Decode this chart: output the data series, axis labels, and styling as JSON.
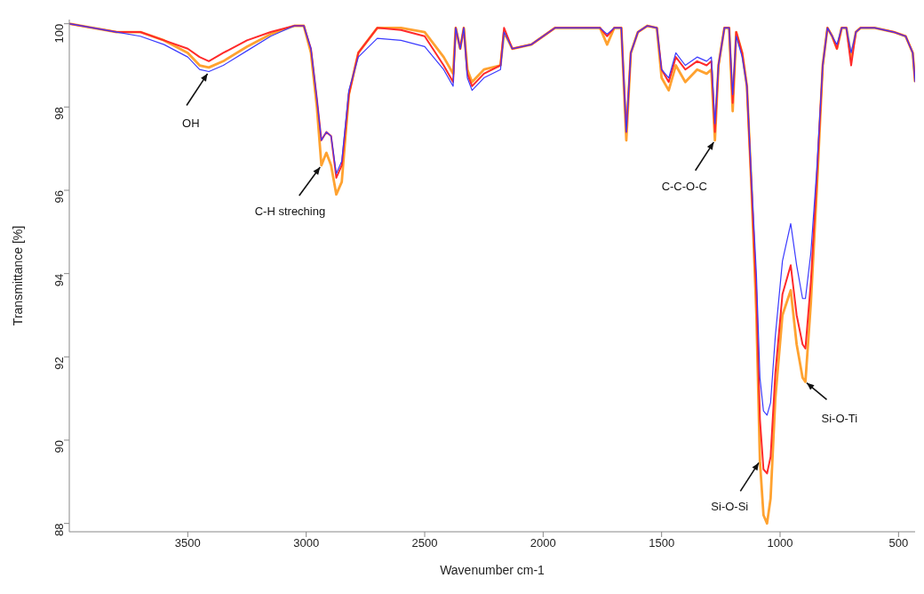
{
  "chart_data": {
    "type": "line",
    "xlabel": "Wavenumber cm-1",
    "ylabel": "Transmittance [%]",
    "xlim": [
      4000,
      430
    ],
    "ylim": [
      87.8,
      100.1
    ],
    "xticks": [
      3500,
      3000,
      2500,
      2000,
      1500,
      1000,
      500
    ],
    "yticks": [
      88,
      90,
      92,
      94,
      96,
      98,
      100
    ],
    "grid": false,
    "legend": false,
    "marker": "none",
    "line_style": "solid",
    "x": [
      4000,
      3900,
      3800,
      3700,
      3600,
      3500,
      3450,
      3411,
      3350,
      3250,
      3150,
      3050,
      3010,
      2980,
      2955,
      2936,
      2915,
      2895,
      2873,
      2850,
      2820,
      2780,
      2700,
      2600,
      2500,
      2420,
      2380,
      2369,
      2350,
      2335,
      2320,
      2300,
      2250,
      2180,
      2165,
      2130,
      2050,
      1950,
      1850,
      1760,
      1730,
      1700,
      1670,
      1649,
      1630,
      1600,
      1560,
      1520,
      1500,
      1470,
      1440,
      1400,
      1350,
      1310,
      1290,
      1275,
      1260,
      1235,
      1215,
      1200,
      1185,
      1160,
      1140,
      1120,
      1100,
      1085,
      1070,
      1055,
      1040,
      1020,
      990,
      955,
      930,
      905,
      893,
      870,
      845,
      820,
      800,
      780,
      760,
      740,
      720,
      700,
      680,
      660,
      600,
      520,
      470,
      440,
      430
    ],
    "series": [
      {
        "color": "#ffa230",
        "values": [
          100,
          99.9,
          99.8,
          99.8,
          99.6,
          99.3,
          99.0,
          98.95,
          99.1,
          99.45,
          99.75,
          99.95,
          99.95,
          99.3,
          98.0,
          96.6,
          96.9,
          96.6,
          95.9,
          96.2,
          98.3,
          99.3,
          99.9,
          99.9,
          99.8,
          99.2,
          98.8,
          99.9,
          99.4,
          99.9,
          98.9,
          98.6,
          98.9,
          99.0,
          99.8,
          99.4,
          99.5,
          99.9,
          99.9,
          99.9,
          99.5,
          99.9,
          99.9,
          97.2,
          99.3,
          99.8,
          99.95,
          99.9,
          98.7,
          98.4,
          99.0,
          98.6,
          98.9,
          98.8,
          98.9,
          97.2,
          99.0,
          99.9,
          99.9,
          97.9,
          99.8,
          99.3,
          98.5,
          96.0,
          93.0,
          89.5,
          88.2,
          88.0,
          88.6,
          91.0,
          93.0,
          93.6,
          92.3,
          91.5,
          91.4,
          93.3,
          96.0,
          99.0,
          99.9,
          99.7,
          99.4,
          99.9,
          99.9,
          99.2,
          99.8,
          99.9,
          99.9,
          99.8,
          99.7,
          99.3,
          98.6
        ]
      },
      {
        "color": "#ff2a2a",
        "values": [
          100,
          99.9,
          99.8,
          99.8,
          99.6,
          99.4,
          99.2,
          99.1,
          99.3,
          99.6,
          99.8,
          99.95,
          99.95,
          99.4,
          98.2,
          97.2,
          97.4,
          97.3,
          96.3,
          96.6,
          98.3,
          99.3,
          99.9,
          99.85,
          99.7,
          99.0,
          98.6,
          99.9,
          99.4,
          99.9,
          98.8,
          98.5,
          98.8,
          99.0,
          99.9,
          99.4,
          99.5,
          99.9,
          99.9,
          99.9,
          99.7,
          99.9,
          99.9,
          97.4,
          99.3,
          99.8,
          99.95,
          99.9,
          98.9,
          98.6,
          99.2,
          98.9,
          99.1,
          99.0,
          99.1,
          97.4,
          99.0,
          99.9,
          99.9,
          98.1,
          99.8,
          99.3,
          98.5,
          96.0,
          93.5,
          90.5,
          89.3,
          89.2,
          89.6,
          91.6,
          93.5,
          94.2,
          93.0,
          92.3,
          92.2,
          93.8,
          96.3,
          99.0,
          99.9,
          99.7,
          99.4,
          99.9,
          99.9,
          99.0,
          99.8,
          99.9,
          99.9,
          99.8,
          99.7,
          99.3,
          98.6
        ]
      },
      {
        "color": "#3a3aff",
        "values": [
          100,
          99.9,
          99.8,
          99.7,
          99.5,
          99.2,
          98.9,
          98.85,
          99.0,
          99.35,
          99.7,
          99.95,
          99.95,
          99.4,
          98.2,
          97.2,
          97.4,
          97.3,
          96.4,
          96.7,
          98.4,
          99.2,
          99.65,
          99.6,
          99.45,
          98.9,
          98.5,
          99.9,
          99.4,
          99.9,
          98.7,
          98.4,
          98.7,
          98.9,
          99.8,
          99.4,
          99.5,
          99.9,
          99.9,
          99.9,
          99.75,
          99.9,
          99.9,
          97.4,
          99.3,
          99.8,
          99.95,
          99.9,
          98.9,
          98.7,
          99.3,
          99.0,
          99.2,
          99.1,
          99.2,
          97.6,
          99.0,
          99.9,
          99.9,
          98.3,
          99.7,
          99.2,
          98.5,
          96.2,
          94.0,
          91.5,
          90.7,
          90.6,
          90.9,
          92.5,
          94.3,
          95.2,
          94.2,
          93.4,
          93.4,
          94.5,
          96.5,
          99.0,
          99.9,
          99.7,
          99.5,
          99.9,
          99.9,
          99.3,
          99.8,
          99.9,
          99.9,
          99.8,
          99.7,
          99.3,
          98.6
        ]
      }
    ],
    "annotations": [
      {
        "text": "OH",
        "x": 3411,
        "y": 98.85
      },
      {
        "text": "C-H streching",
        "x": 2936,
        "y": 96.6
      },
      {
        "text": "C-C-O-C",
        "x": 1275,
        "y": 97.2
      },
      {
        "text": "Si-O-Si",
        "x": 1085,
        "y": 89.5
      },
      {
        "text": "Si-O-Ti",
        "x": 893,
        "y": 91.4
      }
    ]
  }
}
